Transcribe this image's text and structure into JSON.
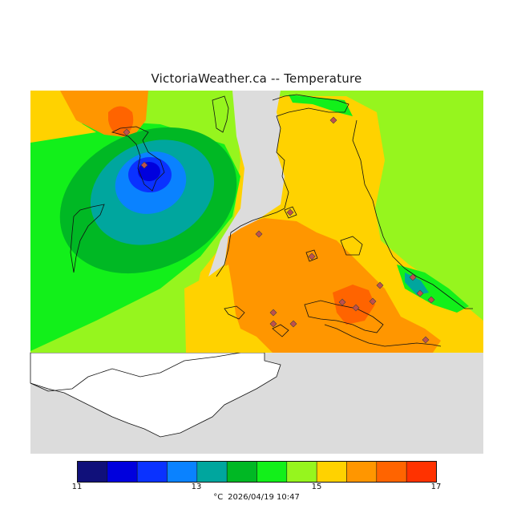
{
  "title": "VictoriaWeather.ca -- Temperature",
  "legend": {
    "colors": [
      "#10107a",
      "#0000dd",
      "#0a32ff",
      "#0a82ff",
      "#00a69e",
      "#00b824",
      "#12f01a",
      "#96f51e",
      "#ffd200",
      "#ff9600",
      "#ff6400",
      "#ff3200"
    ],
    "ticks": [
      "11",
      "13",
      "15",
      "17"
    ],
    "unit": "°C"
  },
  "timestamp": "2026/04/19 10:47",
  "colors": {
    "land_masked": "#dcdcdc",
    "station_marker": "#c0504d"
  }
}
